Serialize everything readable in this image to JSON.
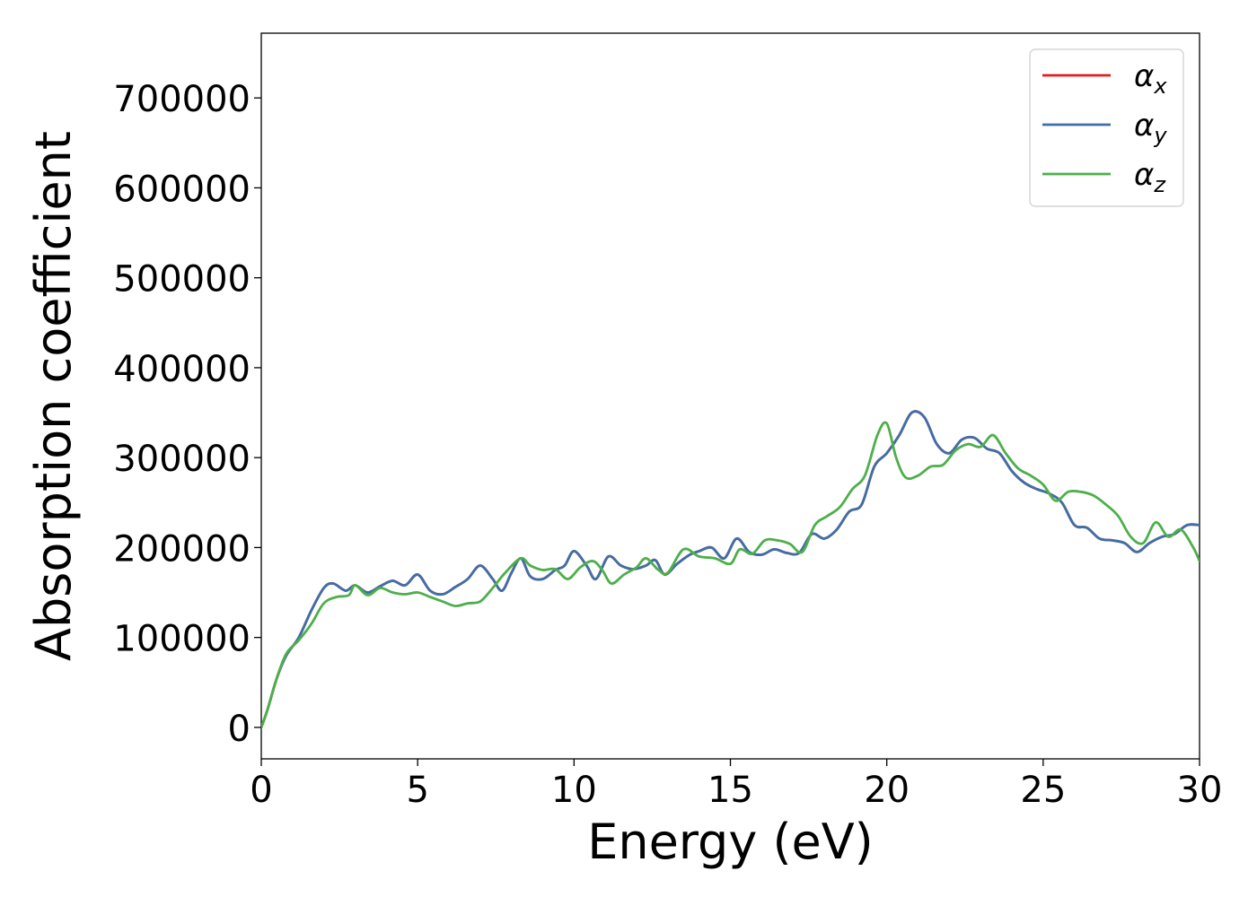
{
  "chart_data": {
    "type": "line",
    "title": "",
    "xlabel": "Energy (eV)",
    "ylabel": "Absorption coefficient",
    "xlim": [
      0,
      30
    ],
    "ylim": [
      -35000,
      772000
    ],
    "xticks": [
      0,
      5,
      10,
      15,
      20,
      25,
      30
    ],
    "yticks": [
      0,
      100000,
      200000,
      300000,
      400000,
      500000,
      600000,
      700000
    ],
    "grid": false,
    "legend_position": "top-right",
    "series": [
      {
        "name": "αx",
        "legend_base": "α",
        "legend_sub": "x",
        "color": "#e41a1c",
        "points": [
          [
            0,
            0
          ],
          [
            0.2,
            20000
          ],
          [
            0.5,
            55000
          ],
          [
            0.8,
            80000
          ],
          [
            1.2,
            100000
          ],
          [
            1.6,
            130000
          ],
          [
            2.0,
            155000
          ],
          [
            2.3,
            160000
          ],
          [
            2.7,
            152000
          ],
          [
            3.0,
            158000
          ],
          [
            3.4,
            150000
          ],
          [
            3.8,
            157000
          ],
          [
            4.2,
            163000
          ],
          [
            4.6,
            158000
          ],
          [
            5.0,
            170000
          ],
          [
            5.4,
            152000
          ],
          [
            5.8,
            148000
          ],
          [
            6.2,
            156000
          ],
          [
            6.6,
            165000
          ],
          [
            7.0,
            180000
          ],
          [
            7.4,
            165000
          ],
          [
            7.7,
            152000
          ],
          [
            8.0,
            172000
          ],
          [
            8.3,
            188000
          ],
          [
            8.6,
            168000
          ],
          [
            9.0,
            165000
          ],
          [
            9.4,
            175000
          ],
          [
            9.7,
            180000
          ],
          [
            10.0,
            196000
          ],
          [
            10.4,
            180000
          ],
          [
            10.7,
            165000
          ],
          [
            11.1,
            190000
          ],
          [
            11.5,
            180000
          ],
          [
            11.9,
            176000
          ],
          [
            12.3,
            180000
          ],
          [
            12.6,
            186000
          ],
          [
            12.9,
            170000
          ],
          [
            13.3,
            182000
          ],
          [
            13.7,
            192000
          ],
          [
            14.0,
            196000
          ],
          [
            14.4,
            200000
          ],
          [
            14.8,
            188000
          ],
          [
            15.2,
            210000
          ],
          [
            15.6,
            195000
          ],
          [
            16.0,
            192000
          ],
          [
            16.4,
            198000
          ],
          [
            16.8,
            194000
          ],
          [
            17.2,
            194000
          ],
          [
            17.6,
            215000
          ],
          [
            18.0,
            210000
          ],
          [
            18.4,
            220000
          ],
          [
            18.8,
            240000
          ],
          [
            19.2,
            248000
          ],
          [
            19.6,
            290000
          ],
          [
            20.0,
            305000
          ],
          [
            20.4,
            325000
          ],
          [
            20.8,
            350000
          ],
          [
            21.2,
            345000
          ],
          [
            21.6,
            315000
          ],
          [
            22.0,
            305000
          ],
          [
            22.4,
            320000
          ],
          [
            22.8,
            322000
          ],
          [
            23.2,
            310000
          ],
          [
            23.6,
            305000
          ],
          [
            24.0,
            285000
          ],
          [
            24.4,
            272000
          ],
          [
            24.8,
            265000
          ],
          [
            25.2,
            260000
          ],
          [
            25.6,
            250000
          ],
          [
            26.0,
            225000
          ],
          [
            26.4,
            222000
          ],
          [
            26.8,
            210000
          ],
          [
            27.2,
            208000
          ],
          [
            27.6,
            205000
          ],
          [
            28.0,
            195000
          ],
          [
            28.4,
            205000
          ],
          [
            28.8,
            212000
          ],
          [
            29.2,
            215000
          ],
          [
            29.6,
            225000
          ],
          [
            30.0,
            225000
          ]
        ]
      },
      {
        "name": "αy",
        "legend_base": "α",
        "legend_sub": "y",
        "color": "#3e6fa8",
        "points": [
          [
            0,
            0
          ],
          [
            0.2,
            20000
          ],
          [
            0.5,
            55000
          ],
          [
            0.8,
            80000
          ],
          [
            1.2,
            100000
          ],
          [
            1.6,
            130000
          ],
          [
            2.0,
            155000
          ],
          [
            2.3,
            160000
          ],
          [
            2.7,
            152000
          ],
          [
            3.0,
            158000
          ],
          [
            3.4,
            150000
          ],
          [
            3.8,
            157000
          ],
          [
            4.2,
            163000
          ],
          [
            4.6,
            158000
          ],
          [
            5.0,
            170000
          ],
          [
            5.4,
            152000
          ],
          [
            5.8,
            148000
          ],
          [
            6.2,
            156000
          ],
          [
            6.6,
            165000
          ],
          [
            7.0,
            180000
          ],
          [
            7.4,
            165000
          ],
          [
            7.7,
            152000
          ],
          [
            8.0,
            172000
          ],
          [
            8.3,
            188000
          ],
          [
            8.6,
            168000
          ],
          [
            9.0,
            165000
          ],
          [
            9.4,
            175000
          ],
          [
            9.7,
            180000
          ],
          [
            10.0,
            196000
          ],
          [
            10.4,
            180000
          ],
          [
            10.7,
            165000
          ],
          [
            11.1,
            190000
          ],
          [
            11.5,
            180000
          ],
          [
            11.9,
            176000
          ],
          [
            12.3,
            180000
          ],
          [
            12.6,
            186000
          ],
          [
            12.9,
            170000
          ],
          [
            13.3,
            182000
          ],
          [
            13.7,
            192000
          ],
          [
            14.0,
            196000
          ],
          [
            14.4,
            200000
          ],
          [
            14.8,
            188000
          ],
          [
            15.2,
            210000
          ],
          [
            15.6,
            195000
          ],
          [
            16.0,
            192000
          ],
          [
            16.4,
            198000
          ],
          [
            16.8,
            194000
          ],
          [
            17.2,
            194000
          ],
          [
            17.6,
            215000
          ],
          [
            18.0,
            210000
          ],
          [
            18.4,
            220000
          ],
          [
            18.8,
            240000
          ],
          [
            19.2,
            248000
          ],
          [
            19.6,
            290000
          ],
          [
            20.0,
            305000
          ],
          [
            20.4,
            325000
          ],
          [
            20.8,
            350000
          ],
          [
            21.2,
            345000
          ],
          [
            21.6,
            315000
          ],
          [
            22.0,
            305000
          ],
          [
            22.4,
            320000
          ],
          [
            22.8,
            322000
          ],
          [
            23.2,
            310000
          ],
          [
            23.6,
            305000
          ],
          [
            24.0,
            285000
          ],
          [
            24.4,
            272000
          ],
          [
            24.8,
            265000
          ],
          [
            25.2,
            260000
          ],
          [
            25.6,
            250000
          ],
          [
            26.0,
            225000
          ],
          [
            26.4,
            222000
          ],
          [
            26.8,
            210000
          ],
          [
            27.2,
            208000
          ],
          [
            27.6,
            205000
          ],
          [
            28.0,
            195000
          ],
          [
            28.4,
            205000
          ],
          [
            28.8,
            212000
          ],
          [
            29.2,
            215000
          ],
          [
            29.6,
            225000
          ],
          [
            30.0,
            225000
          ]
        ]
      },
      {
        "name": "αz",
        "legend_base": "α",
        "legend_sub": "z",
        "color": "#4daf4a",
        "points": [
          [
            0,
            0
          ],
          [
            0.2,
            20000
          ],
          [
            0.5,
            55000
          ],
          [
            0.8,
            82000
          ],
          [
            1.2,
            97000
          ],
          [
            1.6,
            115000
          ],
          [
            2.0,
            138000
          ],
          [
            2.4,
            145000
          ],
          [
            2.8,
            147000
          ],
          [
            3.0,
            158000
          ],
          [
            3.4,
            147000
          ],
          [
            3.8,
            155000
          ],
          [
            4.2,
            150000
          ],
          [
            4.6,
            148000
          ],
          [
            5.0,
            150000
          ],
          [
            5.4,
            145000
          ],
          [
            5.8,
            140000
          ],
          [
            6.2,
            135000
          ],
          [
            6.6,
            138000
          ],
          [
            7.0,
            140000
          ],
          [
            7.4,
            155000
          ],
          [
            7.8,
            172000
          ],
          [
            8.3,
            188000
          ],
          [
            8.6,
            180000
          ],
          [
            9.0,
            175000
          ],
          [
            9.4,
            176000
          ],
          [
            9.8,
            165000
          ],
          [
            10.2,
            178000
          ],
          [
            10.6,
            185000
          ],
          [
            10.9,
            175000
          ],
          [
            11.2,
            160000
          ],
          [
            11.6,
            170000
          ],
          [
            12.0,
            178000
          ],
          [
            12.3,
            188000
          ],
          [
            12.7,
            175000
          ],
          [
            13.0,
            172000
          ],
          [
            13.5,
            198000
          ],
          [
            14.0,
            190000
          ],
          [
            14.5,
            188000
          ],
          [
            15.0,
            182000
          ],
          [
            15.3,
            198000
          ],
          [
            15.7,
            193000
          ],
          [
            16.1,
            208000
          ],
          [
            16.5,
            208000
          ],
          [
            16.9,
            204000
          ],
          [
            17.3,
            195000
          ],
          [
            17.7,
            225000
          ],
          [
            18.1,
            235000
          ],
          [
            18.5,
            245000
          ],
          [
            18.9,
            265000
          ],
          [
            19.3,
            280000
          ],
          [
            19.7,
            325000
          ],
          [
            20.0,
            338000
          ],
          [
            20.3,
            300000
          ],
          [
            20.6,
            278000
          ],
          [
            21.0,
            280000
          ],
          [
            21.4,
            290000
          ],
          [
            21.8,
            292000
          ],
          [
            22.2,
            308000
          ],
          [
            22.6,
            315000
          ],
          [
            23.0,
            312000
          ],
          [
            23.4,
            325000
          ],
          [
            23.8,
            305000
          ],
          [
            24.2,
            288000
          ],
          [
            24.6,
            280000
          ],
          [
            25.0,
            270000
          ],
          [
            25.4,
            252000
          ],
          [
            25.8,
            262000
          ],
          [
            26.2,
            262000
          ],
          [
            26.6,
            258000
          ],
          [
            27.0,
            248000
          ],
          [
            27.4,
            235000
          ],
          [
            27.8,
            212000
          ],
          [
            28.2,
            205000
          ],
          [
            28.6,
            228000
          ],
          [
            29.0,
            212000
          ],
          [
            29.4,
            220000
          ],
          [
            29.8,
            200000
          ],
          [
            30.0,
            185000
          ]
        ]
      }
    ]
  }
}
